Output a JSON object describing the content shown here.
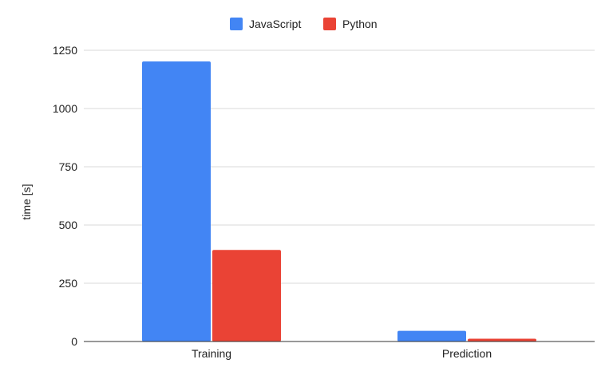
{
  "chart_data": {
    "type": "bar",
    "categories": [
      "Training",
      "Prediction"
    ],
    "series": [
      {
        "name": "JavaScript",
        "color": "#4285f4",
        "values": [
          1202,
          46
        ]
      },
      {
        "name": "Python",
        "color": "#ea4335",
        "values": [
          393,
          12
        ]
      }
    ],
    "xlabel": "",
    "ylabel": "time [s]",
    "ylim": [
      0,
      1250
    ],
    "yticks": [
      0,
      250,
      500,
      750,
      1000,
      1250
    ],
    "grid": true,
    "legend_position": "top-center"
  }
}
